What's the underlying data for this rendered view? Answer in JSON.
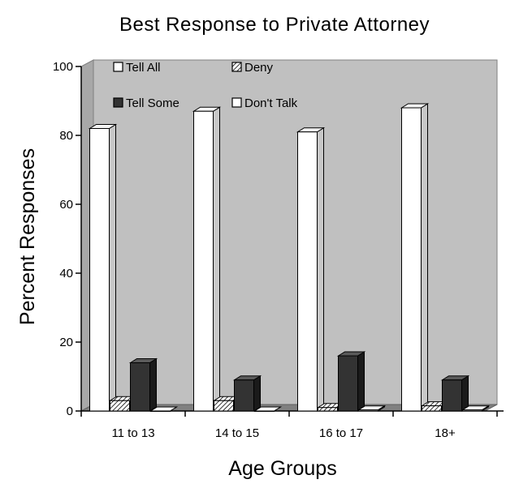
{
  "chart_data": {
    "type": "bar",
    "title": "Best Response to Private Attorney",
    "xlabel": "Age Groups",
    "ylabel": "Percent Responses",
    "ylim": [
      0,
      100
    ],
    "yticks": [
      0,
      20,
      40,
      60,
      80,
      100
    ],
    "categories": [
      "11 to 13",
      "14 to 15",
      "16 to 17",
      "18+"
    ],
    "series": [
      {
        "name": "Tell All",
        "values": [
          82,
          87,
          81,
          88
        ],
        "color": "#ffffff",
        "pattern": "solid"
      },
      {
        "name": "Deny",
        "values": [
          3,
          3,
          1,
          1.5
        ],
        "color": "#ffffff",
        "pattern": "hatch"
      },
      {
        "name": "Tell Some",
        "values": [
          14,
          9,
          16,
          9
        ],
        "color": "#333333",
        "pattern": "solid"
      },
      {
        "name": "Don't Talk",
        "values": [
          0,
          0,
          0.3,
          0.3
        ],
        "color": "#ffffff",
        "pattern": "solid"
      }
    ],
    "legend_position": "top-left",
    "plot_background": "#c0c0c0",
    "grid": false
  }
}
